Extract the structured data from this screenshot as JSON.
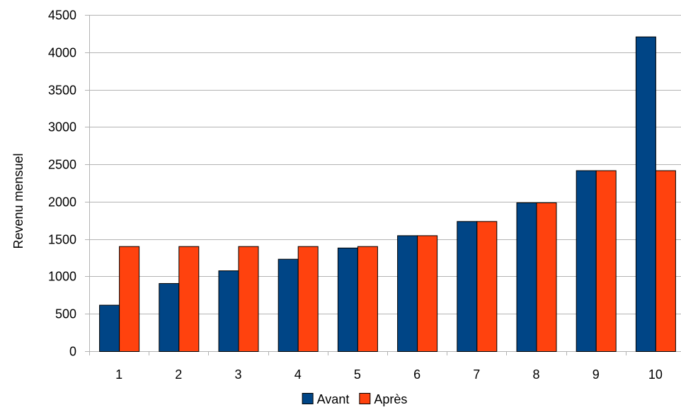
{
  "chart_data": {
    "type": "bar",
    "title": "",
    "xlabel": "",
    "ylabel": "Revenu mensuel",
    "categories": [
      "1",
      "2",
      "3",
      "4",
      "5",
      "6",
      "7",
      "8",
      "9",
      "10"
    ],
    "series": [
      {
        "name": "Avant",
        "color": "#004586",
        "values": [
          620,
          910,
          1080,
          1235,
          1385,
          1550,
          1740,
          1990,
          2420,
          4210
        ]
      },
      {
        "name": "Après",
        "color": "#ff420e",
        "values": [
          1405,
          1405,
          1405,
          1405,
          1405,
          1550,
          1740,
          1990,
          2420,
          2420
        ]
      }
    ],
    "ylim": [
      0,
      4500
    ],
    "yticks": [
      0,
      500,
      1000,
      1500,
      2000,
      2500,
      3000,
      3500,
      4000,
      4500
    ],
    "grid": true,
    "legend_position": "bottom-center"
  }
}
